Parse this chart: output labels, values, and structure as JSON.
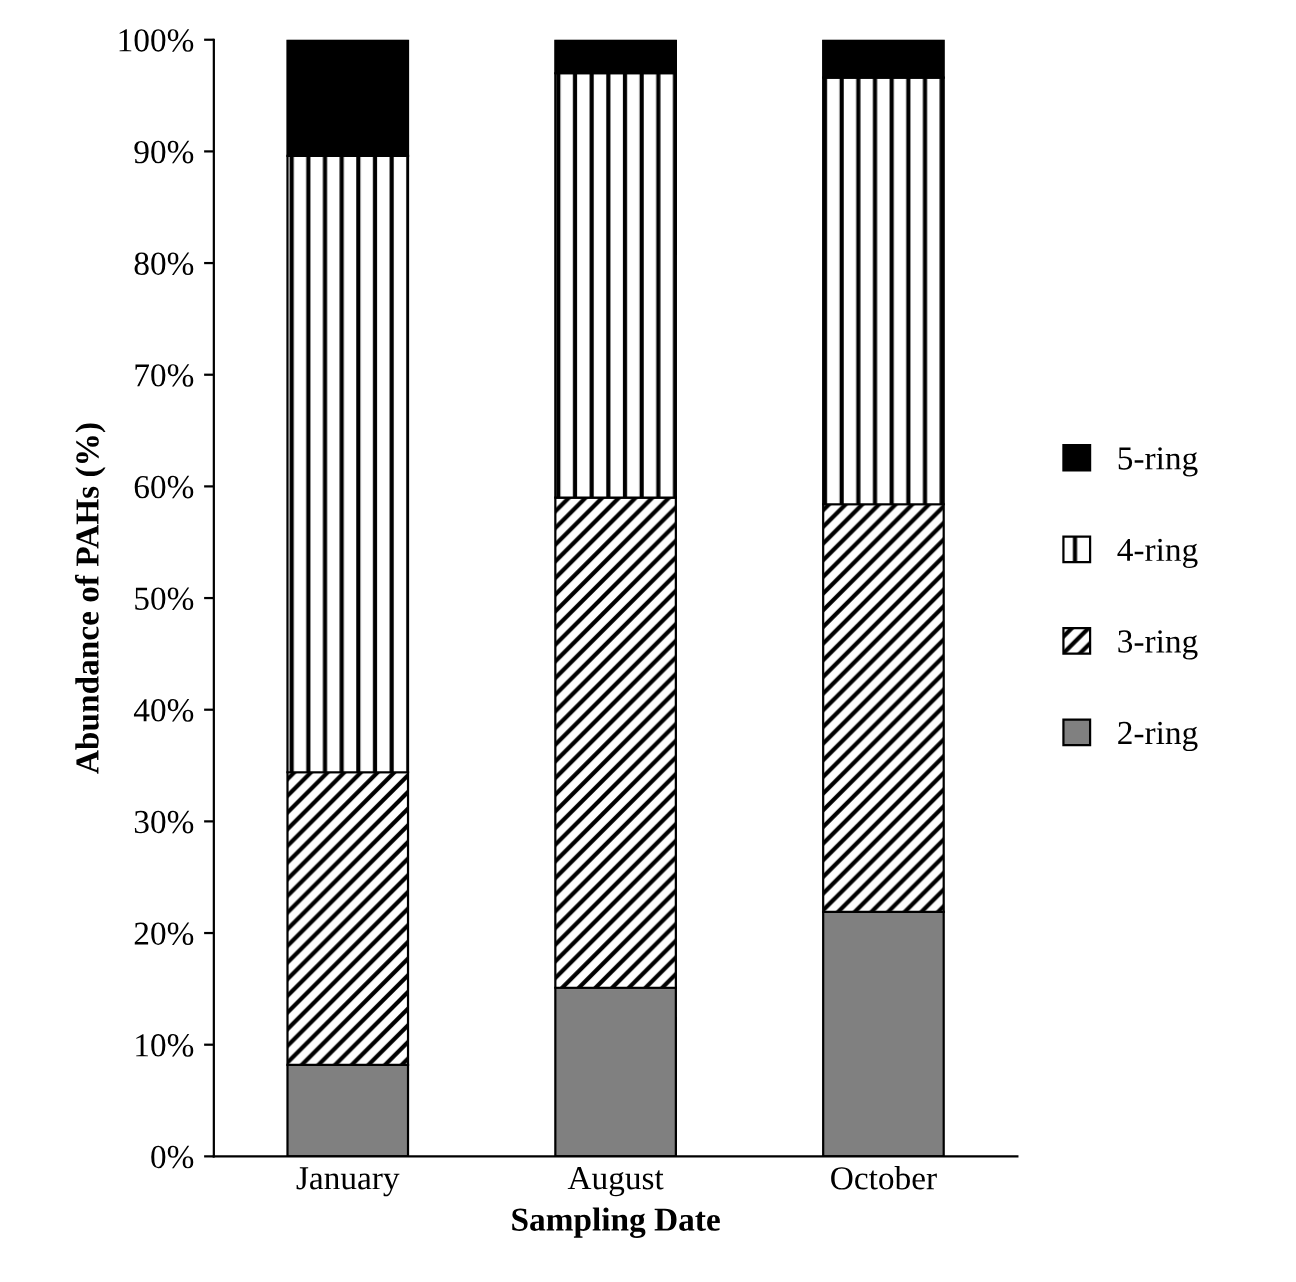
{
  "chart_data": {
    "type": "bar",
    "stacked": true,
    "xlabel": "Sampling Date",
    "ylabel": "Abundance of PAHs (%)",
    "categories": [
      "January",
      "August",
      "October"
    ],
    "series": [
      {
        "name": "2-ring",
        "color": "#808080",
        "values": [
          8.2,
          15.1,
          21.9
        ]
      },
      {
        "name": "3-ring",
        "color": "#000000",
        "values": [
          26.2,
          43.9,
          36.5
        ]
      },
      {
        "name": "4-ring",
        "color": "#000000",
        "values": [
          55.2,
          38.0,
          38.2
        ]
      },
      {
        "name": "5-ring",
        "color": "#000000",
        "values": [
          10.4,
          3.0,
          3.4
        ]
      }
    ],
    "ylim": [
      0,
      100
    ],
    "yticks": [
      {
        "value": 0,
        "label": "0%"
      },
      {
        "value": 10,
        "label": "10%"
      },
      {
        "value": 20,
        "label": "20%"
      },
      {
        "value": 30,
        "label": "30%"
      },
      {
        "value": 40,
        "label": "40%"
      },
      {
        "value": 50,
        "label": "50%"
      },
      {
        "value": 60,
        "label": "60%"
      },
      {
        "value": 70,
        "label": "70%"
      },
      {
        "value": 80,
        "label": "80%"
      },
      {
        "value": 90,
        "label": "90%"
      },
      {
        "value": 100,
        "label": "100%"
      }
    ],
    "grid": false,
    "legend": "right"
  }
}
